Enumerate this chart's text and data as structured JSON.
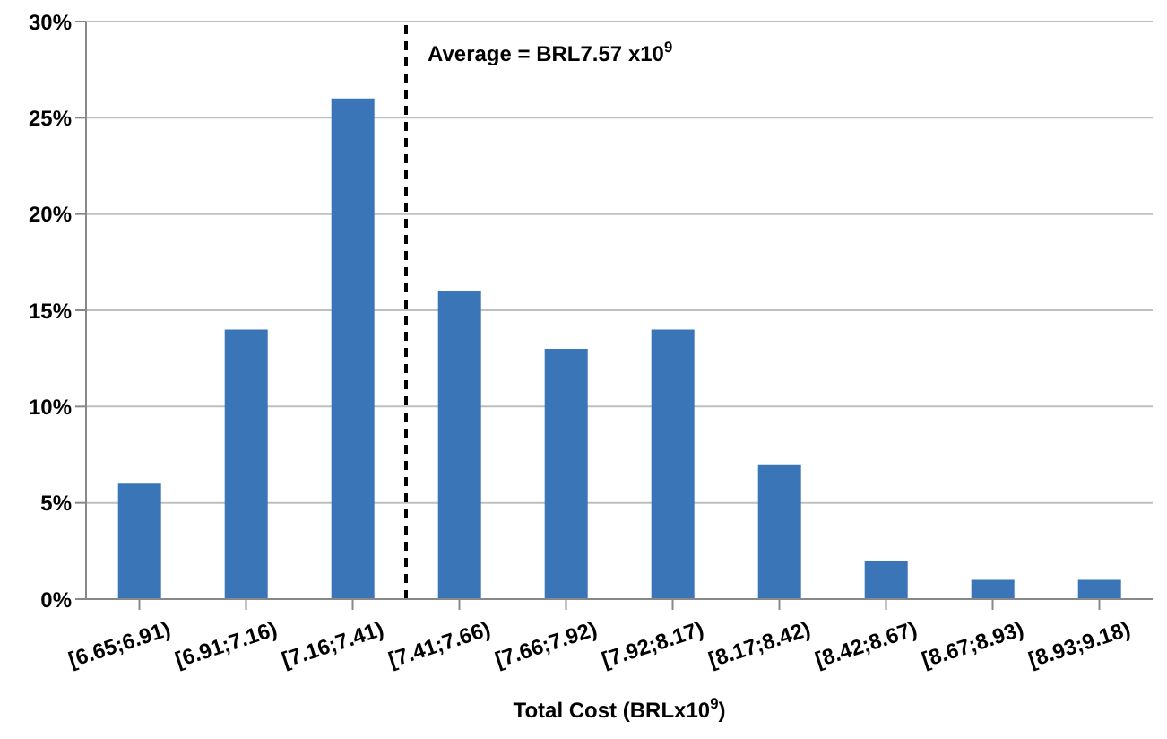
{
  "chart_data": {
    "type": "bar",
    "xlabel": "Total Cost (BRLx10$^{9}$)",
    "categories": [
      "[6.65;6.91)",
      "[6.91;7.16)",
      "[7.16;7.41)",
      "[7.41;7.66)",
      "[7.66;7.92)",
      "[7.92;8.17)",
      "[8.17;8.42)",
      "[8.42;8.67)",
      "[8.67;8.93)",
      "[8.93;9.18)"
    ],
    "values": [
      6,
      14,
      26,
      16,
      13,
      14,
      7,
      2,
      1,
      1
    ],
    "color": "#3a75b7",
    "ylim": [
      0,
      30
    ],
    "yticks": [
      {
        "value": 0,
        "label": "0%"
      },
      {
        "value": 5,
        "label": "5%"
      },
      {
        "value": 10,
        "label": "10%"
      },
      {
        "value": 15,
        "label": "15%"
      },
      {
        "value": 20,
        "label": "20%"
      },
      {
        "value": 25,
        "label": "25%"
      },
      {
        "value": 30,
        "label": "30%"
      }
    ],
    "grid": "y",
    "ref_lines": [
      {
        "axis": "x",
        "value": "[7.41;7.66)",
        "label": "Average = BRL7.57 x10$^{9}$",
        "line_style": "dashed",
        "color": "#000000"
      }
    ]
  }
}
